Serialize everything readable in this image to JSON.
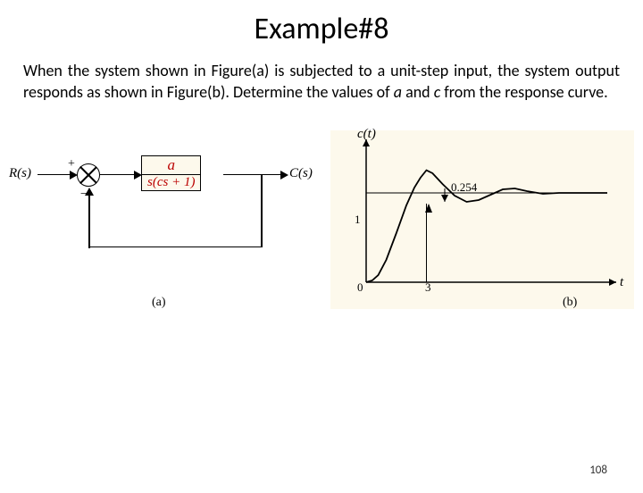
{
  "title": "Example#8",
  "problem": {
    "pre": "When the system shown in Figure(a) is subjected to a unit-step input, the system output responds as shown in Figure(b). Determine the values of ",
    "var_a": "a",
    "mid": " and ",
    "var_c": "c",
    "post": " from the response curve."
  },
  "page_number": "108",
  "figA": {
    "input_label": "R(s)",
    "output_label": "C(s)",
    "sum_plus": "+",
    "sum_minus": "−",
    "tf_num": "a",
    "tf_den": "s(cs + 1)",
    "caption": "(a)",
    "colors": {
      "box_bg": "#fdf9ec",
      "tf_text": "#b00000",
      "line": "#000000"
    }
  },
  "figB": {
    "caption": "(b)",
    "ylabel": "c(t)",
    "xlabel": "t",
    "y_ss_label": "1",
    "origin_label": "0",
    "tp_label": "3",
    "overshoot_label": "0.254",
    "curve": {
      "type": "step-response",
      "xlim": [
        0,
        12
      ],
      "ylim": [
        0,
        1.5
      ],
      "y_ss": 1.0,
      "overshoot": 0.254,
      "tp": 3,
      "color": "#000000",
      "line_width": 1.8,
      "points": [
        [
          0,
          0
        ],
        [
          0.3,
          0.02
        ],
        [
          0.6,
          0.08
        ],
        [
          1.0,
          0.25
        ],
        [
          1.5,
          0.55
        ],
        [
          2.0,
          0.86
        ],
        [
          2.4,
          1.06
        ],
        [
          2.7,
          1.17
        ],
        [
          3.0,
          1.254
        ],
        [
          3.3,
          1.22
        ],
        [
          3.8,
          1.1
        ],
        [
          4.4,
          0.97
        ],
        [
          5.0,
          0.9
        ],
        [
          5.6,
          0.92
        ],
        [
          6.2,
          0.98
        ],
        [
          6.8,
          1.04
        ],
        [
          7.4,
          1.05
        ],
        [
          8.0,
          1.02
        ],
        [
          8.8,
          0.99
        ],
        [
          9.6,
          1.0
        ],
        [
          10.5,
          1.0
        ],
        [
          12,
          1.0
        ]
      ]
    },
    "colors": {
      "axis": "#000000",
      "grid_line": "#000000",
      "bg": "#fdf9ec"
    }
  }
}
